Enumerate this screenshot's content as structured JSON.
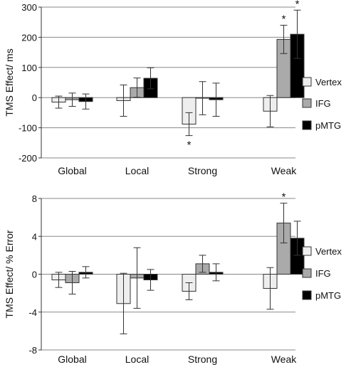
{
  "chart_data": [
    {
      "type": "bar",
      "ylabel": "TMS Effect/ ms",
      "categories": [
        "Global",
        "Local",
        "Strong",
        "Weak"
      ],
      "ylim": [
        -200,
        300
      ],
      "yticks": [
        -200,
        -100,
        0,
        100,
        200,
        300
      ],
      "ytick_labels": [
        "-200",
        "-100",
        "0",
        "100",
        "200",
        "300"
      ],
      "grid": true,
      "legend_position": "right",
      "series": [
        {
          "name": "Vertex",
          "color": "#eeeeee",
          "values": [
            -15,
            -10,
            -88,
            -45
          ],
          "err": [
            20,
            52,
            38,
            52
          ]
        },
        {
          "name": "IFG",
          "color": "#aaaaaa",
          "values": [
            -7,
            33,
            -2,
            193
          ],
          "err": [
            22,
            32,
            55,
            47
          ]
        },
        {
          "name": "pMTG",
          "color": "#000000",
          "values": [
            -13,
            64,
            -7,
            210
          ],
          "err": [
            25,
            35,
            55,
            80
          ]
        }
      ],
      "annotations": [
        {
          "category": "Strong",
          "series": "Vertex",
          "text": "*",
          "position": "below"
        },
        {
          "category": "Weak",
          "series": "IFG",
          "text": "*",
          "position": "above"
        },
        {
          "category": "Weak",
          "series": "pMTG",
          "text": "*",
          "position": "above"
        }
      ]
    },
    {
      "type": "bar",
      "ylabel": "TMS Effect/ % Error",
      "categories": [
        "Global",
        "Local",
        "Strong",
        "Weak"
      ],
      "ylim": [
        -8,
        8
      ],
      "yticks": [
        -8,
        -4,
        0,
        4,
        8
      ],
      "ytick_labels": [
        "-8",
        "-4",
        "0",
        "4",
        "8"
      ],
      "grid": true,
      "legend_position": "right",
      "series": [
        {
          "name": "Vertex",
          "color": "#eeeeee",
          "values": [
            -0.6,
            -3.1,
            -1.8,
            -1.5
          ],
          "err": [
            0.8,
            3.2,
            0.9,
            2.2
          ]
        },
        {
          "name": "IFG",
          "color": "#aaaaaa",
          "values": [
            -0.9,
            -0.4,
            1.1,
            5.4
          ],
          "err": [
            1.2,
            3.2,
            0.9,
            2.1
          ]
        },
        {
          "name": "pMTG",
          "color": "#000000",
          "values": [
            0.2,
            -0.6,
            0.2,
            3.8
          ],
          "err": [
            0.6,
            1.1,
            0.9,
            1.8
          ]
        }
      ],
      "annotations": [
        {
          "category": "Weak",
          "series": "IFG",
          "text": "*",
          "position": "above"
        }
      ]
    }
  ]
}
